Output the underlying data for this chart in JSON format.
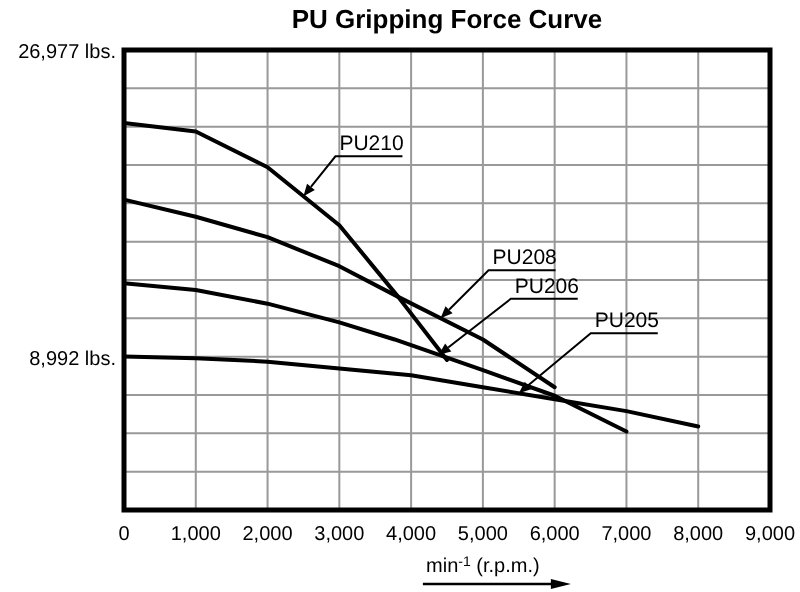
{
  "chart_data": {
    "type": "line",
    "title": "PU Gripping Force Curve",
    "xlabel": "min$^{-1}$ (r.p.m.)",
    "xlim": [
      0,
      9000
    ],
    "ylim": [
      0,
      26977
    ],
    "xticks": [
      0,
      {
        "value": 1000,
        "label": "1,000"
      },
      {
        "value": 2000,
        "label": "2,000"
      },
      {
        "value": 3000,
        "label": "3,000"
      },
      {
        "value": 4000,
        "label": "4,000"
      },
      {
        "value": 5000,
        "label": "5,000"
      },
      {
        "value": 6000,
        "label": "6,000"
      },
      {
        "value": 7000,
        "label": "7,000"
      },
      {
        "value": 8000,
        "label": "8,000"
      },
      {
        "value": 9000,
        "label": "9,000"
      }
    ],
    "yticks": [
      {
        "value": 0,
        "label": null
      },
      {
        "value": 2248,
        "label": null
      },
      {
        "value": 4496,
        "label": null
      },
      {
        "value": 6744,
        "label": null
      },
      {
        "value": 8992,
        "label": "8,992 lbs."
      },
      {
        "value": 11240,
        "label": null
      },
      {
        "value": 13488,
        "label": null
      },
      {
        "value": 15736,
        "label": null
      },
      {
        "value": 17984,
        "label": null
      },
      {
        "value": 20232,
        "label": null
      },
      {
        "value": 22480,
        "label": null
      },
      {
        "value": 24728,
        "label": null
      },
      {
        "value": 26977,
        "label": "26,977 lbs."
      }
    ],
    "grid": true,
    "marker": "none",
    "line_style": "solid",
    "series": [
      {
        "name": "PU210",
        "color": "#000000",
        "x": [
          0,
          1000,
          2000,
          3000,
          3820,
          4500
        ],
        "values": [
          22700,
          22200,
          20100,
          16700,
          12500,
          8800
        ]
      },
      {
        "name": "PU208",
        "color": "#000000",
        "x": [
          0,
          1000,
          2000,
          3000,
          3820,
          5000,
          6000
        ],
        "values": [
          18200,
          17200,
          16000,
          14300,
          12500,
          10000,
          7200
        ]
      },
      {
        "name": "PU206",
        "color": "#000000",
        "x": [
          0,
          1000,
          2000,
          3000,
          3770,
          5000,
          6000,
          7000
        ],
        "values": [
          13300,
          12900,
          12100,
          11000,
          10000,
          8200,
          6700,
          4600
        ]
      },
      {
        "name": "PU205",
        "color": "#000000",
        "x": [
          0,
          1000,
          2000,
          3000,
          4000,
          5000,
          6000,
          7000,
          8000
        ],
        "values": [
          9000,
          8900,
          8700,
          8300,
          7900,
          7200,
          6500,
          5800,
          4900
        ]
      }
    ]
  }
}
